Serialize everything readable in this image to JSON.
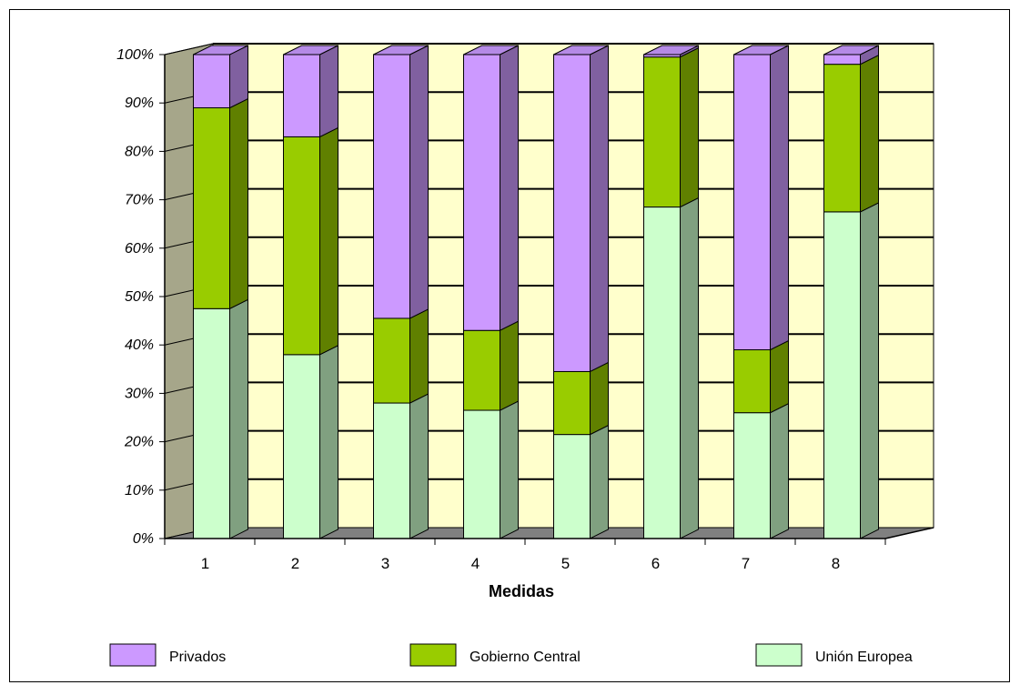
{
  "chart_data": {
    "type": "bar",
    "stacked": true,
    "percent_stacked": true,
    "three_d": true,
    "categories": [
      "1",
      "2",
      "3",
      "4",
      "5",
      "6",
      "7",
      "8"
    ],
    "series": [
      {
        "name": "Unión Europea",
        "values": [
          47.5,
          38,
          28,
          26.5,
          21.5,
          68.5,
          26,
          67.5
        ]
      },
      {
        "name": "Gobierno Central",
        "values": [
          41.5,
          45,
          17.5,
          16.5,
          13,
          31,
          13,
          30.5
        ]
      },
      {
        "name": "Privados",
        "values": [
          11,
          17,
          54.5,
          57,
          65.5,
          0.5,
          61,
          2
        ]
      }
    ],
    "xlabel": "Medidas",
    "ylabel": "",
    "ylim": [
      0,
      100
    ],
    "yticks": [
      "0%",
      "10%",
      "20%",
      "30%",
      "40%",
      "50%",
      "60%",
      "70%",
      "80%",
      "90%",
      "100%"
    ],
    "grid": true,
    "legend_position": "bottom",
    "legend": [
      "Privados",
      "Gobierno Central",
      "Unión Europea"
    ],
    "colors": {
      "Unión Europea": {
        "front": "#ccffcc",
        "side": "#80a080",
        "top": "#b8e6b8"
      },
      "Gobierno Central": {
        "front": "#99cc00",
        "side": "#608000",
        "top": "#86b300"
      },
      "Privados": {
        "front": "#cc99ff",
        "side": "#8060a0",
        "top": "#b58ae6"
      },
      "plot_back": "#ffffcc",
      "plot_wall": "#a6a68a",
      "plot_floor": "#808080"
    }
  }
}
